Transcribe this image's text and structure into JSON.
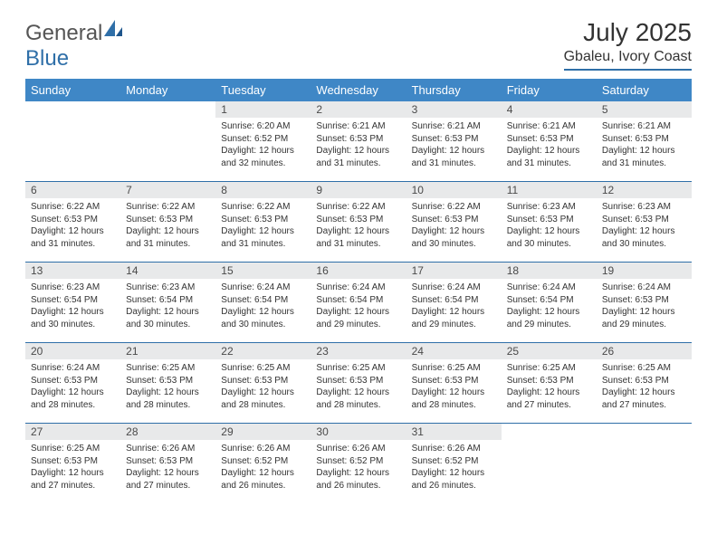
{
  "logo": {
    "word1": "General",
    "word2": "Blue"
  },
  "title": "July 2025",
  "location": "Gbaleu, Ivory Coast",
  "header_bg": "#3f87c6",
  "accent": "#2f6fa8",
  "daynum_bg": "#e8e9ea",
  "day_headers": [
    "Sunday",
    "Monday",
    "Tuesday",
    "Wednesday",
    "Thursday",
    "Friday",
    "Saturday"
  ],
  "weeks": [
    [
      null,
      null,
      {
        "n": "1",
        "sr": "Sunrise: 6:20 AM",
        "ss": "Sunset: 6:52 PM",
        "dl": "Daylight: 12 hours and 32 minutes."
      },
      {
        "n": "2",
        "sr": "Sunrise: 6:21 AM",
        "ss": "Sunset: 6:53 PM",
        "dl": "Daylight: 12 hours and 31 minutes."
      },
      {
        "n": "3",
        "sr": "Sunrise: 6:21 AM",
        "ss": "Sunset: 6:53 PM",
        "dl": "Daylight: 12 hours and 31 minutes."
      },
      {
        "n": "4",
        "sr": "Sunrise: 6:21 AM",
        "ss": "Sunset: 6:53 PM",
        "dl": "Daylight: 12 hours and 31 minutes."
      },
      {
        "n": "5",
        "sr": "Sunrise: 6:21 AM",
        "ss": "Sunset: 6:53 PM",
        "dl": "Daylight: 12 hours and 31 minutes."
      }
    ],
    [
      {
        "n": "6",
        "sr": "Sunrise: 6:22 AM",
        "ss": "Sunset: 6:53 PM",
        "dl": "Daylight: 12 hours and 31 minutes."
      },
      {
        "n": "7",
        "sr": "Sunrise: 6:22 AM",
        "ss": "Sunset: 6:53 PM",
        "dl": "Daylight: 12 hours and 31 minutes."
      },
      {
        "n": "8",
        "sr": "Sunrise: 6:22 AM",
        "ss": "Sunset: 6:53 PM",
        "dl": "Daylight: 12 hours and 31 minutes."
      },
      {
        "n": "9",
        "sr": "Sunrise: 6:22 AM",
        "ss": "Sunset: 6:53 PM",
        "dl": "Daylight: 12 hours and 31 minutes."
      },
      {
        "n": "10",
        "sr": "Sunrise: 6:22 AM",
        "ss": "Sunset: 6:53 PM",
        "dl": "Daylight: 12 hours and 30 minutes."
      },
      {
        "n": "11",
        "sr": "Sunrise: 6:23 AM",
        "ss": "Sunset: 6:53 PM",
        "dl": "Daylight: 12 hours and 30 minutes."
      },
      {
        "n": "12",
        "sr": "Sunrise: 6:23 AM",
        "ss": "Sunset: 6:53 PM",
        "dl": "Daylight: 12 hours and 30 minutes."
      }
    ],
    [
      {
        "n": "13",
        "sr": "Sunrise: 6:23 AM",
        "ss": "Sunset: 6:54 PM",
        "dl": "Daylight: 12 hours and 30 minutes."
      },
      {
        "n": "14",
        "sr": "Sunrise: 6:23 AM",
        "ss": "Sunset: 6:54 PM",
        "dl": "Daylight: 12 hours and 30 minutes."
      },
      {
        "n": "15",
        "sr": "Sunrise: 6:24 AM",
        "ss": "Sunset: 6:54 PM",
        "dl": "Daylight: 12 hours and 30 minutes."
      },
      {
        "n": "16",
        "sr": "Sunrise: 6:24 AM",
        "ss": "Sunset: 6:54 PM",
        "dl": "Daylight: 12 hours and 29 minutes."
      },
      {
        "n": "17",
        "sr": "Sunrise: 6:24 AM",
        "ss": "Sunset: 6:54 PM",
        "dl": "Daylight: 12 hours and 29 minutes."
      },
      {
        "n": "18",
        "sr": "Sunrise: 6:24 AM",
        "ss": "Sunset: 6:54 PM",
        "dl": "Daylight: 12 hours and 29 minutes."
      },
      {
        "n": "19",
        "sr": "Sunrise: 6:24 AM",
        "ss": "Sunset: 6:53 PM",
        "dl": "Daylight: 12 hours and 29 minutes."
      }
    ],
    [
      {
        "n": "20",
        "sr": "Sunrise: 6:24 AM",
        "ss": "Sunset: 6:53 PM",
        "dl": "Daylight: 12 hours and 28 minutes."
      },
      {
        "n": "21",
        "sr": "Sunrise: 6:25 AM",
        "ss": "Sunset: 6:53 PM",
        "dl": "Daylight: 12 hours and 28 minutes."
      },
      {
        "n": "22",
        "sr": "Sunrise: 6:25 AM",
        "ss": "Sunset: 6:53 PM",
        "dl": "Daylight: 12 hours and 28 minutes."
      },
      {
        "n": "23",
        "sr": "Sunrise: 6:25 AM",
        "ss": "Sunset: 6:53 PM",
        "dl": "Daylight: 12 hours and 28 minutes."
      },
      {
        "n": "24",
        "sr": "Sunrise: 6:25 AM",
        "ss": "Sunset: 6:53 PM",
        "dl": "Daylight: 12 hours and 28 minutes."
      },
      {
        "n": "25",
        "sr": "Sunrise: 6:25 AM",
        "ss": "Sunset: 6:53 PM",
        "dl": "Daylight: 12 hours and 27 minutes."
      },
      {
        "n": "26",
        "sr": "Sunrise: 6:25 AM",
        "ss": "Sunset: 6:53 PM",
        "dl": "Daylight: 12 hours and 27 minutes."
      }
    ],
    [
      {
        "n": "27",
        "sr": "Sunrise: 6:25 AM",
        "ss": "Sunset: 6:53 PM",
        "dl": "Daylight: 12 hours and 27 minutes."
      },
      {
        "n": "28",
        "sr": "Sunrise: 6:26 AM",
        "ss": "Sunset: 6:53 PM",
        "dl": "Daylight: 12 hours and 27 minutes."
      },
      {
        "n": "29",
        "sr": "Sunrise: 6:26 AM",
        "ss": "Sunset: 6:52 PM",
        "dl": "Daylight: 12 hours and 26 minutes."
      },
      {
        "n": "30",
        "sr": "Sunrise: 6:26 AM",
        "ss": "Sunset: 6:52 PM",
        "dl": "Daylight: 12 hours and 26 minutes."
      },
      {
        "n": "31",
        "sr": "Sunrise: 6:26 AM",
        "ss": "Sunset: 6:52 PM",
        "dl": "Daylight: 12 hours and 26 minutes."
      },
      null,
      null
    ]
  ]
}
